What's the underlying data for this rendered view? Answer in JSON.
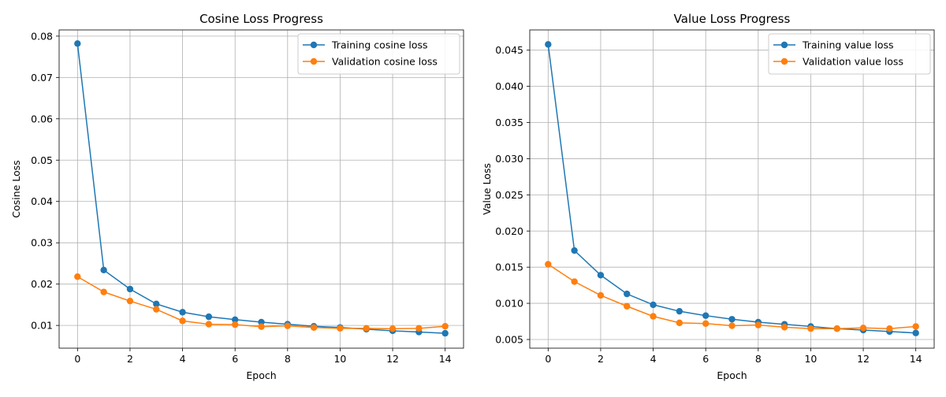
{
  "chart_data": [
    {
      "type": "line",
      "title": "Cosine Loss Progress",
      "xlabel": "Epoch",
      "ylabel": "Cosine Loss",
      "grid": true,
      "legend": "top-right",
      "xlim": [
        -0.7,
        14.7
      ],
      "ylim": [
        0.0045,
        0.0815
      ],
      "xticks": [
        0,
        2,
        4,
        6,
        8,
        10,
        12,
        14
      ],
      "xtick_labels": [
        "0",
        "2",
        "4",
        "6",
        "8",
        "10",
        "12",
        "14"
      ],
      "yticks": [
        0.01,
        0.02,
        0.03,
        0.04,
        0.05,
        0.06,
        0.07,
        0.08
      ],
      "ytick_labels": [
        "0.01",
        "0.02",
        "0.03",
        "0.04",
        "0.05",
        "0.06",
        "0.07",
        "0.08"
      ],
      "x": [
        0,
        1,
        2,
        3,
        4,
        5,
        6,
        7,
        8,
        9,
        10,
        11,
        12,
        13,
        14
      ],
      "series": [
        {
          "name": "Training cosine loss",
          "color": "#1f77b4",
          "values": [
            0.0782,
            0.0234,
            0.0188,
            0.0152,
            0.0132,
            0.0121,
            0.0114,
            0.0108,
            0.0103,
            0.0098,
            0.0095,
            0.0091,
            0.0087,
            0.0084,
            0.0081
          ]
        },
        {
          "name": "Validation cosine loss",
          "color": "#ff7f0e",
          "values": [
            0.0218,
            0.0181,
            0.0159,
            0.0139,
            0.0111,
            0.0103,
            0.0102,
            0.0097,
            0.0099,
            0.0095,
            0.0093,
            0.0093,
            0.0092,
            0.0093,
            0.0098
          ]
        }
      ]
    },
    {
      "type": "line",
      "title": "Value Loss Progress",
      "xlabel": "Epoch",
      "ylabel": "Value Loss",
      "grid": true,
      "legend": "top-right",
      "xlim": [
        -0.7,
        14.7
      ],
      "ylim": [
        0.0038,
        0.0478
      ],
      "xticks": [
        0,
        2,
        4,
        6,
        8,
        10,
        12,
        14
      ],
      "xtick_labels": [
        "0",
        "2",
        "4",
        "6",
        "8",
        "10",
        "12",
        "14"
      ],
      "yticks": [
        0.005,
        0.01,
        0.015,
        0.02,
        0.025,
        0.03,
        0.035,
        0.04,
        0.045
      ],
      "ytick_labels": [
        "0.005",
        "0.010",
        "0.015",
        "0.020",
        "0.025",
        "0.030",
        "0.035",
        "0.040",
        "0.045"
      ],
      "x": [
        0,
        1,
        2,
        3,
        4,
        5,
        6,
        7,
        8,
        9,
        10,
        11,
        12,
        13,
        14
      ],
      "series": [
        {
          "name": "Training value loss",
          "color": "#1f77b4",
          "values": [
            0.0458,
            0.0173,
            0.0139,
            0.0113,
            0.0098,
            0.0089,
            0.0083,
            0.0078,
            0.0074,
            0.0071,
            0.0068,
            0.0065,
            0.0063,
            0.0061,
            0.0059
          ]
        },
        {
          "name": "Validation value loss",
          "color": "#ff7f0e",
          "values": [
            0.0154,
            0.013,
            0.0111,
            0.0096,
            0.0082,
            0.0073,
            0.0072,
            0.0069,
            0.007,
            0.0067,
            0.0065,
            0.0065,
            0.0066,
            0.0065,
            0.0068
          ]
        }
      ]
    }
  ]
}
